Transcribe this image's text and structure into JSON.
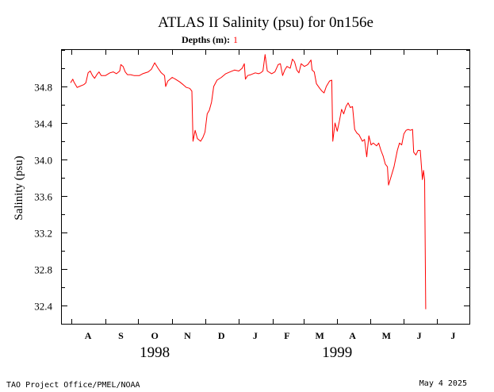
{
  "chart_data": {
    "type": "line",
    "title": "ATLAS II Salinity (psu) for 0n156e",
    "subtitle_label": "Depths (m):",
    "subtitle_value": "1",
    "ylabel": "Salinity (psu)",
    "xlabel": "",
    "ylim": [
      32.2,
      35.2
    ],
    "yticks": [
      32.4,
      32.8,
      33.2,
      33.6,
      34.0,
      34.4,
      34.8
    ],
    "ytick_labels": [
      "32.4",
      "32.8",
      "33.2",
      "33.6",
      "34.0",
      "34.4",
      "34.8"
    ],
    "xlim": [
      "1998-07-23",
      "1999-07-31"
    ],
    "xticks": [
      "1998-08-01",
      "1998-09-01",
      "1998-10-01",
      "1998-11-01",
      "1998-12-01",
      "1999-01-01",
      "1999-02-01",
      "1999-03-01",
      "1999-04-01",
      "1999-05-01",
      "1999-06-01",
      "1999-07-01"
    ],
    "month_labels": [
      {
        "date": "1998-08-16",
        "text": "A"
      },
      {
        "date": "1998-09-15",
        "text": "S"
      },
      {
        "date": "1998-10-16",
        "text": "O"
      },
      {
        "date": "1998-11-15",
        "text": "N"
      },
      {
        "date": "1998-12-16",
        "text": "D"
      },
      {
        "date": "1999-01-16",
        "text": "J"
      },
      {
        "date": "1999-02-14",
        "text": "F"
      },
      {
        "date": "1999-03-16",
        "text": "M"
      },
      {
        "date": "1999-04-15",
        "text": "A"
      },
      {
        "date": "1999-05-16",
        "text": "M"
      },
      {
        "date": "1999-06-15",
        "text": "J"
      },
      {
        "date": "1999-07-16",
        "text": "J"
      }
    ],
    "year_labels": [
      {
        "date": "1998-10-16",
        "text": "1998"
      },
      {
        "date": "1999-04-01",
        "text": "1999"
      }
    ],
    "grid": false,
    "series": [
      {
        "color": "#ff0000",
        "points": [
          [
            "1998-07-31",
            34.84
          ],
          [
            "1998-08-02",
            34.88
          ],
          [
            "1998-08-03",
            34.85
          ],
          [
            "1998-08-06",
            34.79
          ],
          [
            "1998-08-08",
            34.8
          ],
          [
            "1998-08-12",
            34.82
          ],
          [
            "1998-08-14",
            34.84
          ],
          [
            "1998-08-16",
            34.95
          ],
          [
            "1998-08-18",
            34.97
          ],
          [
            "1998-08-20",
            34.92
          ],
          [
            "1998-08-22",
            34.89
          ],
          [
            "1998-08-24",
            34.93
          ],
          [
            "1998-08-26",
            34.96
          ],
          [
            "1998-08-28",
            34.92
          ],
          [
            "1998-09-01",
            34.92
          ],
          [
            "1998-09-05",
            34.95
          ],
          [
            "1998-09-08",
            34.96
          ],
          [
            "1998-09-11",
            34.94
          ],
          [
            "1998-09-14",
            34.97
          ],
          [
            "1998-09-15",
            35.04
          ],
          [
            "1998-09-17",
            35.02
          ],
          [
            "1998-09-19",
            34.96
          ],
          [
            "1998-09-21",
            34.93
          ],
          [
            "1998-09-24",
            34.93
          ],
          [
            "1998-09-27",
            34.92
          ],
          [
            "1998-09-29",
            34.92
          ],
          [
            "1998-10-02",
            34.92
          ],
          [
            "1998-10-05",
            34.94
          ],
          [
            "1998-10-10",
            34.96
          ],
          [
            "1998-10-13",
            34.99
          ],
          [
            "1998-10-16",
            35.06
          ],
          [
            "1998-10-19",
            35.0
          ],
          [
            "1998-10-22",
            34.95
          ],
          [
            "1998-10-25",
            34.92
          ],
          [
            "1998-10-26",
            34.8
          ],
          [
            "1998-10-28",
            34.86
          ],
          [
            "1998-11-01",
            34.9
          ],
          [
            "1998-11-04",
            34.88
          ],
          [
            "1998-11-08",
            34.85
          ],
          [
            "1998-11-11",
            34.82
          ],
          [
            "1998-11-14",
            34.79
          ],
          [
            "1998-11-17",
            34.78
          ],
          [
            "1998-11-19",
            34.75
          ],
          [
            "1998-11-20",
            34.2
          ],
          [
            "1998-11-22",
            34.32
          ],
          [
            "1998-11-24",
            34.23
          ],
          [
            "1998-11-27",
            34.2
          ],
          [
            "1998-11-29",
            34.24
          ],
          [
            "1998-12-01",
            34.3
          ],
          [
            "1998-12-03",
            34.5
          ],
          [
            "1998-12-05",
            34.54
          ],
          [
            "1998-12-07",
            34.63
          ],
          [
            "1998-12-09",
            34.8
          ],
          [
            "1998-12-12",
            34.87
          ],
          [
            "1998-12-16",
            34.9
          ],
          [
            "1998-12-20",
            34.94
          ],
          [
            "1998-12-24",
            34.96
          ],
          [
            "1998-12-28",
            34.98
          ],
          [
            "1999-01-01",
            34.97
          ],
          [
            "1999-01-04",
            35.0
          ],
          [
            "1999-01-06",
            35.05
          ],
          [
            "1999-01-07",
            34.88
          ],
          [
            "1999-01-09",
            34.92
          ],
          [
            "1999-01-12",
            34.93
          ],
          [
            "1999-01-16",
            34.95
          ],
          [
            "1999-01-19",
            34.94
          ],
          [
            "1999-01-21",
            34.95
          ],
          [
            "1999-01-23",
            34.97
          ],
          [
            "1999-01-25",
            35.15
          ],
          [
            "1999-01-27",
            34.97
          ],
          [
            "1999-01-31",
            34.94
          ],
          [
            "1999-02-03",
            34.96
          ],
          [
            "1999-02-06",
            35.04
          ],
          [
            "1999-02-08",
            35.05
          ],
          [
            "1999-02-10",
            34.92
          ],
          [
            "1999-02-12",
            34.98
          ],
          [
            "1999-02-14",
            35.02
          ],
          [
            "1999-02-17",
            35.0
          ],
          [
            "1999-02-19",
            35.1
          ],
          [
            "1999-02-21",
            35.07
          ],
          [
            "1999-02-23",
            34.98
          ],
          [
            "1999-02-25",
            34.95
          ],
          [
            "1999-02-27",
            35.05
          ],
          [
            "1999-03-02",
            35.02
          ],
          [
            "1999-03-05",
            35.04
          ],
          [
            "1999-03-08",
            35.09
          ],
          [
            "1999-03-09",
            34.98
          ],
          [
            "1999-03-11",
            34.96
          ],
          [
            "1999-03-13",
            34.83
          ],
          [
            "1999-03-16",
            34.78
          ],
          [
            "1999-03-18",
            34.75
          ],
          [
            "1999-03-20",
            34.73
          ],
          [
            "1999-03-22",
            34.8
          ],
          [
            "1999-03-25",
            34.86
          ],
          [
            "1999-03-27",
            34.87
          ],
          [
            "1999-03-28",
            34.2
          ],
          [
            "1999-03-30",
            34.4
          ],
          [
            "1999-04-01",
            34.31
          ],
          [
            "1999-04-03",
            34.42
          ],
          [
            "1999-04-05",
            34.55
          ],
          [
            "1999-04-07",
            34.5
          ],
          [
            "1999-04-09",
            34.58
          ],
          [
            "1999-04-11",
            34.62
          ],
          [
            "1999-04-13",
            34.57
          ],
          [
            "1999-04-15",
            34.58
          ],
          [
            "1999-04-17",
            34.33
          ],
          [
            "1999-04-19",
            34.29
          ],
          [
            "1999-04-21",
            34.27
          ],
          [
            "1999-04-24",
            34.2
          ],
          [
            "1999-04-26",
            34.22
          ],
          [
            "1999-04-28",
            34.03
          ],
          [
            "1999-04-30",
            34.26
          ],
          [
            "1999-05-02",
            34.16
          ],
          [
            "1999-05-04",
            34.18
          ],
          [
            "1999-05-07",
            34.15
          ],
          [
            "1999-05-09",
            34.18
          ],
          [
            "1999-05-11",
            34.1
          ],
          [
            "1999-05-13",
            34.04
          ],
          [
            "1999-05-15",
            33.95
          ],
          [
            "1999-05-17",
            33.92
          ],
          [
            "1999-05-18",
            33.72
          ],
          [
            "1999-05-20",
            33.8
          ],
          [
            "1999-05-23",
            33.92
          ],
          [
            "1999-05-26",
            34.1
          ],
          [
            "1999-05-28",
            34.18
          ],
          [
            "1999-05-30",
            34.16
          ],
          [
            "1999-06-01",
            34.28
          ],
          [
            "1999-06-03",
            34.32
          ],
          [
            "1999-06-05",
            34.33
          ],
          [
            "1999-06-07",
            34.32
          ],
          [
            "1999-06-09",
            34.33
          ],
          [
            "1999-06-10",
            34.08
          ],
          [
            "1999-06-12",
            34.05
          ],
          [
            "1999-06-14",
            34.1
          ],
          [
            "1999-06-16",
            34.1
          ],
          [
            "1999-06-18",
            33.78
          ],
          [
            "1999-06-19",
            33.88
          ],
          [
            "1999-06-20",
            33.78
          ],
          [
            "1999-06-21",
            32.36
          ]
        ]
      }
    ]
  },
  "footer": {
    "credit": "TAO Project Office/PMEL/NOAA",
    "date": "May  4 2025"
  }
}
